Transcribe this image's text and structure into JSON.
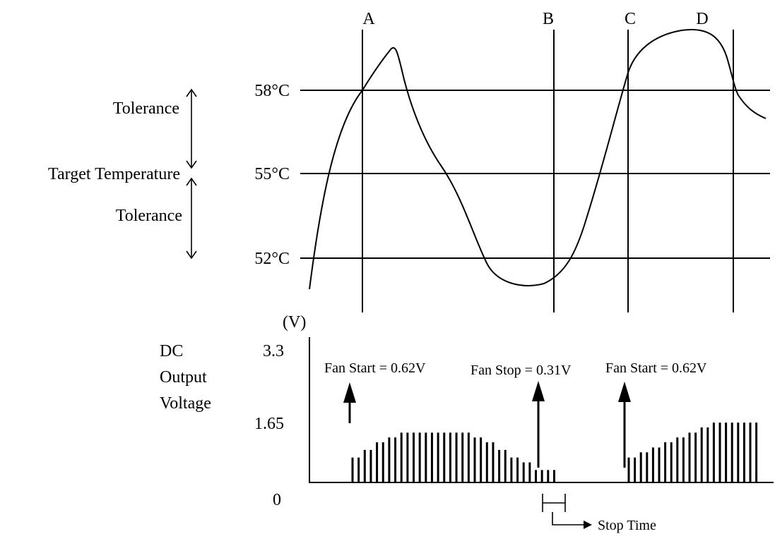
{
  "markers": [
    "A",
    "B",
    "C",
    "D"
  ],
  "temperature_axis": {
    "upper_label": "58°C",
    "target_label": "55°C",
    "lower_label": "52°C"
  },
  "left_labels": {
    "tolerance_upper": "Tolerance",
    "target": "Target Temperature",
    "tolerance_lower": "Tolerance"
  },
  "voltage_axis": {
    "unit": "(V)",
    "title_line1": "DC",
    "title_line2": "Output",
    "title_line3": "Voltage",
    "tick_max": "3.3",
    "tick_mid": "1.65",
    "tick_zero": "0"
  },
  "annotations": {
    "fan_start_1": "Fan Start = 0.62V",
    "fan_stop": "Fan Stop = 0.31V",
    "fan_start_2": "Fan Start = 0.62V",
    "stop_time": "Stop Time"
  },
  "pulse_bars_volts": {
    "group1": [
      0.62,
      0.62,
      0.81,
      0.81,
      1.0,
      1.0,
      1.12,
      1.12,
      1.24,
      1.24,
      1.24,
      1.24,
      1.24,
      1.24,
      1.24,
      1.24,
      1.24,
      1.24,
      1.24,
      1.24,
      1.12,
      1.12,
      1.0,
      1.0,
      0.81,
      0.81,
      0.62,
      0.62,
      0.5,
      0.5,
      0.31,
      0.31,
      0.31,
      0.31
    ],
    "group2": [
      0.62,
      0.62,
      0.75,
      0.75,
      0.87,
      0.87,
      1.0,
      1.0,
      1.12,
      1.12,
      1.24,
      1.24,
      1.37,
      1.37,
      1.49,
      1.49,
      1.49,
      1.49,
      1.49,
      1.49,
      1.49,
      1.49
    ]
  }
}
